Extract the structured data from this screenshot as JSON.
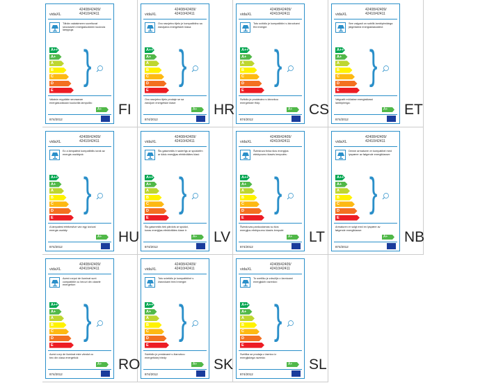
{
  "label": {
    "brand": "vidaXL",
    "model": [
      "42408/42409/",
      "42410/42411"
    ],
    "classes": [
      "A++",
      "A+",
      "A",
      "B",
      "C",
      "D",
      "E"
    ],
    "sold_class": "A+",
    "regulation": "874/2012"
  },
  "cards": [
    {
      "language": "FI",
      "top_text": "Tähän valaisimeen soveltuvat seuraavien energialuokkien kuuluvia lamppuja",
      "bottom_text": "Valaisin myydään seuraavan energialuokkaan kuuluvilla lampuilla:"
    },
    {
      "language": "HR",
      "top_text": "Ovo rasvjetno tijelo je kompatibilno sa žaruljama energetskih klasa:",
      "bottom_text": "Ovo rasvjetno tijelo prodaje se sa žaruljom energetske klase:"
    },
    {
      "language": "CS",
      "top_text": "Toto svítidlo je kompatibilní s žárovkami tříd energie:",
      "bottom_text": "Svítidlo je prodáváno s žárovkou energetické třídy:"
    },
    {
      "language": "ET",
      "top_text": "See valgusti on sobilik lambipirnidega järgmistest energiaklassidest:",
      "bottom_text": "Valgustit müüakse energiaklassi lambipirniga:"
    },
    {
      "language": "HU",
      "top_text": "Ez a lámpatest kompatibilis izzók az energia osztályok:",
      "bottom_text": "A lámpatest értékesítve van egy izzóval energia osztály:"
    },
    {
      "language": "LV",
      "top_text": "Šis gaismeklis ir saderīgs ar spuldzēm ar šādu enerģijas efektivitātes klasi:",
      "bottom_text": "Šis gaismeklis tiek pārdots ar spuldzi, kuras enerģijas efektivitātes klase ir:"
    },
    {
      "language": "LT",
      "top_text": "Šviestuvui tinka šios energijos efektyvumo klasės lemputės:",
      "bottom_text": "Šviestuvas parduodamas su šios energijos efektyvumo klasės lemputė:"
    },
    {
      "language": "NB",
      "top_text": "Denne armaturen er kompatibel med lyspærer av følgende energiklasser:",
      "bottom_text": "Armaturen er solgt med en lyspære av følgende energiklasse:"
    },
    {
      "language": "RO",
      "top_text": "Acest corpul de iluminat sunt compatibile cu becuri din clasele energetice:",
      "bottom_text": "Acest corp de iluminat este vândut cu bec din clasa energetică:"
    },
    {
      "language": "SK",
      "top_text": "Toto svietidlo je kompatibilné s žiarovkami tried energie:",
      "bottom_text": "Svietidlo je predávané s žiarovkou energetickej triedy:"
    },
    {
      "language": "SL",
      "top_text": "To svetilko je združljiv z žarnicami energijskih razredov:",
      "bottom_text": "Svetilka se prodaja z žarnico iz energijskega razreda:"
    }
  ]
}
